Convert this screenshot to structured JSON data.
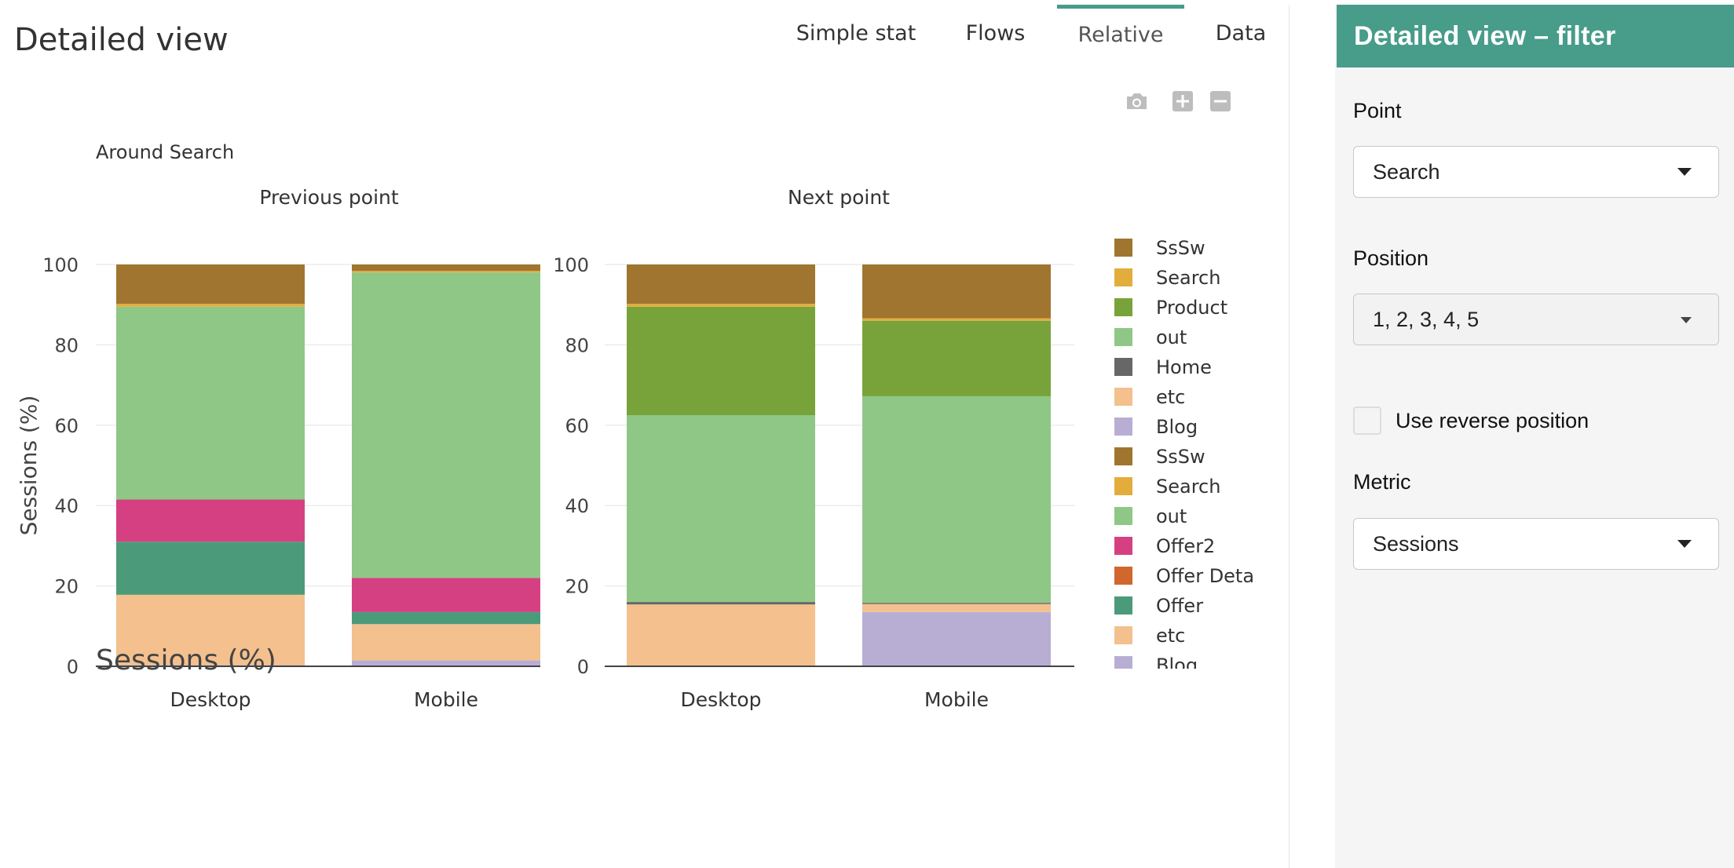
{
  "page": {
    "title": "Detailed view"
  },
  "tabs": [
    {
      "label": "Simple stat",
      "active": false
    },
    {
      "label": "Flows",
      "active": false
    },
    {
      "label": "Relative",
      "active": true
    },
    {
      "label": "Data",
      "active": false
    }
  ],
  "modebar": {
    "icons": [
      "camera-icon",
      "zoom-in-icon",
      "zoom-out-icon"
    ]
  },
  "colors": {
    "accent": "#479c8a",
    "SsSw": "#a07530",
    "Search": "#e3ad3c",
    "Product": "#78a33a",
    "out": "#8fc787",
    "Home": "#676767",
    "etc": "#f4c08e",
    "Blog": "#b8aed4",
    "Offer2": "#d54083",
    "Offer Deta": "#d0672c",
    "Offer": "#4b9b7a"
  },
  "chart_data": {
    "type": "bar",
    "title": "Around Search",
    "ylabel": "Sessions (%)",
    "ylabel_overlay": "Sessions (%)",
    "ylim": [
      0,
      100
    ],
    "yticks": [
      0,
      20,
      40,
      60,
      80,
      100
    ],
    "grid": true,
    "legend_position": "right",
    "legend": [
      "SsSw",
      "Search",
      "Product",
      "out",
      "Home",
      "etc",
      "Blog",
      "SsSw",
      "Search",
      "out",
      "Offer2",
      "Offer Deta",
      "Offer",
      "etc",
      "Blog"
    ],
    "panels": [
      {
        "subtitle": "Previous point",
        "categories": [
          "Desktop",
          "Mobile"
        ],
        "series": [
          {
            "name": "Blog",
            "values": [
              0.3,
              1.5
            ]
          },
          {
            "name": "etc",
            "values": [
              17.5,
              9.0
            ]
          },
          {
            "name": "Offer",
            "values": [
              13.2,
              3.0
            ]
          },
          {
            "name": "Offer2",
            "values": [
              10.5,
              8.5
            ]
          },
          {
            "name": "out",
            "values": [
              48.0,
              76.0
            ]
          },
          {
            "name": "Search",
            "values": [
              0.7,
              0.4
            ]
          },
          {
            "name": "SsSw",
            "values": [
              9.8,
              1.6
            ]
          }
        ]
      },
      {
        "subtitle": "Next point",
        "categories": [
          "Desktop",
          "Mobile"
        ],
        "series": [
          {
            "name": "Blog",
            "values": [
              0.0,
              13.5
            ]
          },
          {
            "name": "etc",
            "values": [
              15.4,
              2.0
            ]
          },
          {
            "name": "Home",
            "values": [
              0.6,
              0.3
            ]
          },
          {
            "name": "out",
            "values": [
              46.5,
              51.4
            ]
          },
          {
            "name": "Product",
            "values": [
              27.0,
              18.8
            ]
          },
          {
            "name": "Search",
            "values": [
              0.7,
              0.6
            ]
          },
          {
            "name": "SsSw",
            "values": [
              9.8,
              13.4
            ]
          }
        ]
      }
    ]
  },
  "sidebar": {
    "header": "Detailed view – filter",
    "point_label": "Point",
    "point_value": "Search",
    "position_label": "Position",
    "position_value": "1, 2, 3, 4, 5",
    "reverse_label": "Use reverse position",
    "reverse_checked": false,
    "metric_label": "Metric",
    "metric_value": "Sessions"
  }
}
